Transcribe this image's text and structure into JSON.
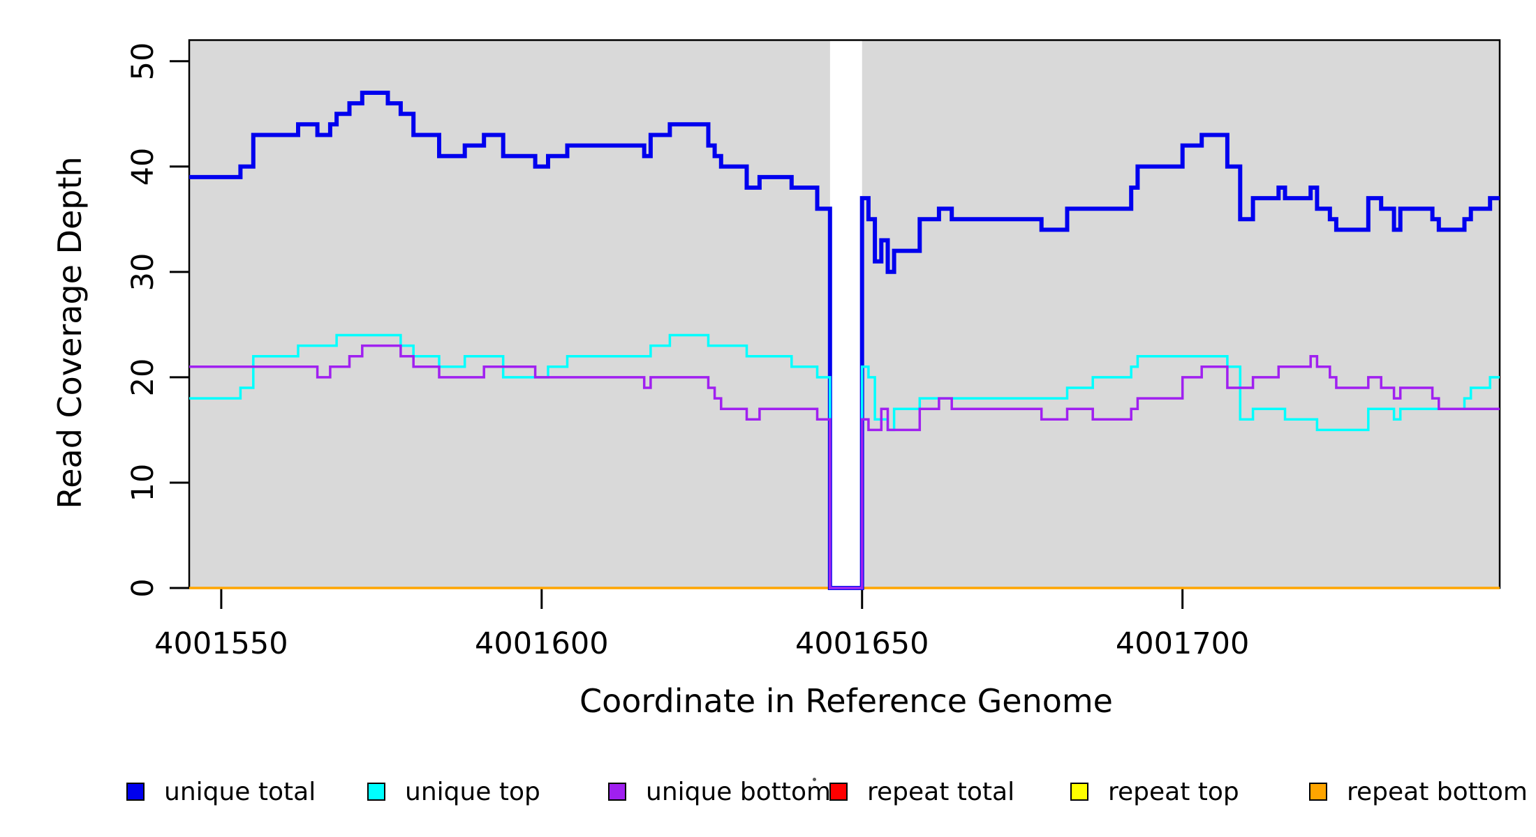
{
  "y_axis": {
    "label": "Read Coverage Depth",
    "ticks": [
      0,
      10,
      20,
      30,
      40,
      50
    ]
  },
  "x_axis": {
    "label": "Coordinate in Reference Genome",
    "ticks": [
      4001550,
      4001600,
      4001650,
      4001700
    ]
  },
  "plot": {
    "background_color": "#D9D9D9",
    "gap_color": "#FFFFFF",
    "border_color": "#000000"
  },
  "legend": {
    "items": [
      {
        "label": "unique total",
        "color": "#0000EE"
      },
      {
        "label": "unique top",
        "color": "#00FFFF"
      },
      {
        "label": "unique bottom",
        "color": "#A020F0"
      },
      {
        "label": "repeat total",
        "color": "#FF0000"
      },
      {
        "label": "repeat top",
        "color": "#FFFF00"
      },
      {
        "label": "repeat bottom",
        "color": "#FFA500"
      }
    ]
  },
  "chart_data": {
    "type": "line",
    "subtype": "step-coverage",
    "title": "",
    "xlabel": "Coordinate in Reference Genome",
    "ylabel": "Read Coverage Depth",
    "xlim": [
      4001545,
      4001749.5
    ],
    "ylim": [
      0,
      52
    ],
    "grid": false,
    "legend_position": "bottom",
    "gap_region": {
      "start": 4001645,
      "end": 4001650,
      "note": "no-coverage white band; lines drop to 0"
    },
    "series": [
      {
        "name": "repeat total",
        "color": "#FF0000",
        "stroke_width": 3,
        "points": [
          [
            4001545,
            0
          ]
        ]
      },
      {
        "name": "repeat top",
        "color": "#FFFF00",
        "stroke_width": 3,
        "points": [
          [
            4001545,
            0
          ]
        ]
      },
      {
        "name": "repeat bottom",
        "color": "#FFA500",
        "stroke_width": 3.5,
        "points": [
          [
            4001545,
            0
          ]
        ]
      },
      {
        "name": "unique total",
        "color": "#0000EE",
        "stroke_width": 6,
        "points": [
          [
            4001545,
            39
          ],
          [
            4001553,
            40
          ],
          [
            4001555,
            43
          ],
          [
            4001562,
            44
          ],
          [
            4001565,
            43
          ],
          [
            4001567,
            44
          ],
          [
            4001568,
            45
          ],
          [
            4001570,
            46
          ],
          [
            4001572,
            47
          ],
          [
            4001576,
            46
          ],
          [
            4001578,
            45
          ],
          [
            4001580,
            43
          ],
          [
            4001584,
            41
          ],
          [
            4001588,
            42
          ],
          [
            4001591,
            43
          ],
          [
            4001594,
            41
          ],
          [
            4001599,
            40
          ],
          [
            4001601,
            41
          ],
          [
            4001604,
            42
          ],
          [
            4001616,
            41
          ],
          [
            4001617,
            43
          ],
          [
            4001620,
            44
          ],
          [
            4001626,
            42
          ],
          [
            4001627,
            41
          ],
          [
            4001628,
            40
          ],
          [
            4001632,
            38
          ],
          [
            4001634,
            39
          ],
          [
            4001639,
            38
          ],
          [
            4001643,
            36
          ],
          [
            4001645,
            0
          ],
          [
            4001650,
            37
          ],
          [
            4001651,
            35
          ],
          [
            4001652,
            31
          ],
          [
            4001653,
            33
          ],
          [
            4001654,
            30
          ],
          [
            4001655,
            32
          ],
          [
            4001659,
            35
          ],
          [
            4001662,
            36
          ],
          [
            4001664,
            35
          ],
          [
            4001678,
            34
          ],
          [
            4001682,
            36
          ],
          [
            4001692,
            38
          ],
          [
            4001693,
            40
          ],
          [
            4001700,
            42
          ],
          [
            4001703,
            43
          ],
          [
            4001707,
            40
          ],
          [
            4001709,
            35
          ],
          [
            4001711,
            37
          ],
          [
            4001715,
            38
          ],
          [
            4001716,
            37
          ],
          [
            4001720,
            38
          ],
          [
            4001721,
            36
          ],
          [
            4001723,
            35
          ],
          [
            4001724,
            34
          ],
          [
            4001729,
            37
          ],
          [
            4001731,
            36
          ],
          [
            4001733,
            34
          ],
          [
            4001734,
            36
          ],
          [
            4001739,
            35
          ],
          [
            4001740,
            34
          ],
          [
            4001744,
            35
          ],
          [
            4001745,
            36
          ],
          [
            4001748,
            37
          ]
        ]
      },
      {
        "name": "unique top",
        "color": "#00FFFF",
        "stroke_width": 3.5,
        "points": [
          [
            4001545,
            18
          ],
          [
            4001553,
            19
          ],
          [
            4001555,
            22
          ],
          [
            4001562,
            23
          ],
          [
            4001568,
            24
          ],
          [
            4001578,
            23
          ],
          [
            4001580,
            22
          ],
          [
            4001584,
            21
          ],
          [
            4001588,
            22
          ],
          [
            4001594,
            20
          ],
          [
            4001601,
            21
          ],
          [
            4001604,
            22
          ],
          [
            4001617,
            23
          ],
          [
            4001620,
            24
          ],
          [
            4001626,
            23
          ],
          [
            4001632,
            22
          ],
          [
            4001639,
            21
          ],
          [
            4001643,
            20
          ],
          [
            4001645,
            0
          ],
          [
            4001650,
            21
          ],
          [
            4001651,
            20
          ],
          [
            4001652,
            16
          ],
          [
            4001654,
            15
          ],
          [
            4001655,
            17
          ],
          [
            4001659,
            18
          ],
          [
            4001682,
            19
          ],
          [
            4001686,
            20
          ],
          [
            4001692,
            21
          ],
          [
            4001693,
            22
          ],
          [
            4001707,
            21
          ],
          [
            4001709,
            16
          ],
          [
            4001711,
            17
          ],
          [
            4001716,
            16
          ],
          [
            4001721,
            15
          ],
          [
            4001729,
            17
          ],
          [
            4001733,
            16
          ],
          [
            4001734,
            17
          ],
          [
            4001744,
            18
          ],
          [
            4001745,
            19
          ],
          [
            4001748,
            20
          ]
        ]
      },
      {
        "name": "unique bottom",
        "color": "#A020F0",
        "stroke_width": 3.5,
        "points": [
          [
            4001545,
            21
          ],
          [
            4001565,
            20
          ],
          [
            4001567,
            21
          ],
          [
            4001570,
            22
          ],
          [
            4001572,
            23
          ],
          [
            4001578,
            22
          ],
          [
            4001580,
            21
          ],
          [
            4001584,
            20
          ],
          [
            4001591,
            21
          ],
          [
            4001599,
            20
          ],
          [
            4001616,
            19
          ],
          [
            4001617,
            20
          ],
          [
            4001626,
            19
          ],
          [
            4001627,
            18
          ],
          [
            4001628,
            17
          ],
          [
            4001632,
            16
          ],
          [
            4001634,
            17
          ],
          [
            4001643,
            16
          ],
          [
            4001645,
            0
          ],
          [
            4001650,
            16
          ],
          [
            4001651,
            15
          ],
          [
            4001653,
            17
          ],
          [
            4001654,
            15
          ],
          [
            4001659,
            17
          ],
          [
            4001662,
            18
          ],
          [
            4001664,
            17
          ],
          [
            4001678,
            16
          ],
          [
            4001682,
            17
          ],
          [
            4001686,
            16
          ],
          [
            4001692,
            17
          ],
          [
            4001693,
            18
          ],
          [
            4001700,
            20
          ],
          [
            4001703,
            21
          ],
          [
            4001707,
            19
          ],
          [
            4001711,
            20
          ],
          [
            4001715,
            21
          ],
          [
            4001720,
            22
          ],
          [
            4001721,
            21
          ],
          [
            4001723,
            20
          ],
          [
            4001724,
            19
          ],
          [
            4001729,
            20
          ],
          [
            4001731,
            19
          ],
          [
            4001733,
            18
          ],
          [
            4001734,
            19
          ],
          [
            4001739,
            18
          ],
          [
            4001740,
            17
          ]
        ]
      }
    ]
  }
}
